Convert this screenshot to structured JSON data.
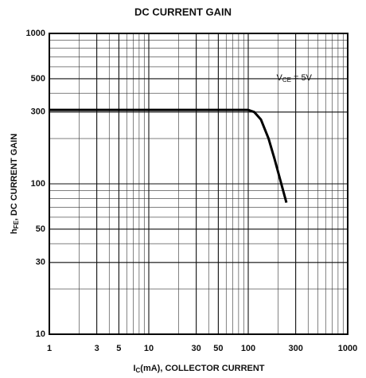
{
  "chart_data": {
    "type": "line",
    "title": "DC CURRENT GAIN",
    "x_label": {
      "main": "I",
      "sub": "C",
      "rest": "(mA), COLLECTOR CURRENT"
    },
    "y_label": {
      "main": "h",
      "sub": "FE",
      "rest": ", DC CURRENT GAIN"
    },
    "annotation": {
      "main": "V",
      "sub": "CE",
      "rest": " = 5V"
    },
    "x_log": true,
    "y_log": true,
    "grid": true,
    "xlim": [
      1,
      1000
    ],
    "ylim": [
      10,
      1000
    ],
    "xticks": [
      1,
      3,
      5,
      10,
      30,
      50,
      100,
      300,
      1000
    ],
    "yticks": [
      10,
      30,
      50,
      100,
      300,
      500,
      1000
    ],
    "series": [
      {
        "color": "#000000",
        "x": [
          1,
          10,
          50,
          100,
          115,
          134,
          160,
          184,
          242
        ],
        "values": [
          310,
          310,
          310,
          310,
          300,
          268,
          200,
          146,
          75
        ]
      }
    ]
  }
}
